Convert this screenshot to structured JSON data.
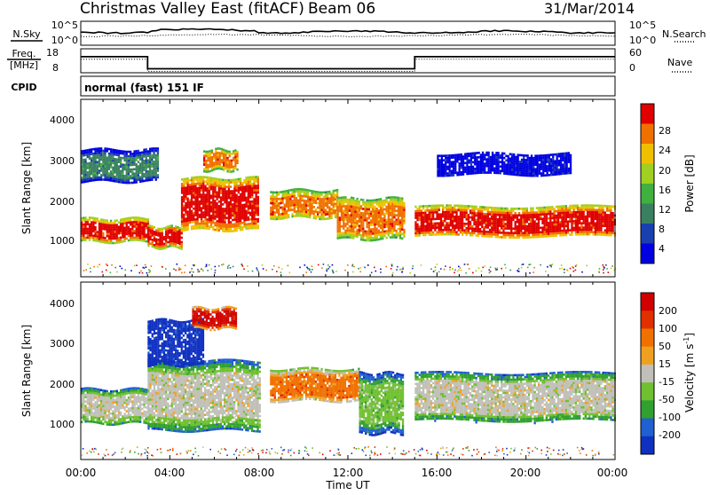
{
  "header": {
    "title": "Christmas Valley East (fitACF)",
    "beam": "Beam 06",
    "date": "31/Mar/2014"
  },
  "nsky_panel": {
    "left_label": "N.Sky",
    "right_label": "N.Search",
    "left_ticks": [
      "10^5",
      "10^0"
    ],
    "right_ticks": [
      "10^5",
      "10^0"
    ]
  },
  "freq_panel": {
    "left_label_line1": "Freq.",
    "left_label_line2": "[MHz]",
    "right_label": "Nave",
    "left_ticks": [
      "18",
      "8"
    ],
    "right_ticks": [
      "60",
      "0"
    ],
    "freq_steps": [
      [
        0,
        17.5
      ],
      [
        3.0,
        17.5
      ],
      [
        3.0,
        9.5
      ],
      [
        15.0,
        9.5
      ],
      [
        15.0,
        17.5
      ],
      [
        24,
        17.5
      ]
    ]
  },
  "cpid": {
    "label": "CPID",
    "value": "normal (fast) 151 IF"
  },
  "power_panel": {
    "ylabel": "Slant Range [km]",
    "yticks": [
      "4000",
      "3000",
      "2000",
      "1000"
    ],
    "colorbar_label": "Power [dB]",
    "colorbar_ticks": [
      "28",
      "24",
      "20",
      "16",
      "12",
      "8",
      "4"
    ],
    "colors": [
      "#0000e0",
      "#1a40b0",
      "#3a8060",
      "#40b040",
      "#a0d020",
      "#f0c000",
      "#f07000",
      "#e00000"
    ]
  },
  "velocity_panel": {
    "ylabel": "Slant Range [km]",
    "yticks": [
      "4000",
      "3000",
      "2000",
      "1000"
    ],
    "colorbar_label": "Velocity [m s",
    "colorbar_sup": "-1",
    "colorbar_label_end": "]",
    "colorbar_ticks": [
      "200",
      "100",
      "50",
      "15",
      "-15",
      "-50",
      "-100",
      "-200"
    ],
    "colors": [
      "#1030c0",
      "#2060d0",
      "#30a030",
      "#70c030",
      "#c0c0b8",
      "#f0a020",
      "#f07000",
      "#e03000",
      "#d00000"
    ]
  },
  "xaxis": {
    "ticks": [
      "00:00",
      "04:00",
      "08:00",
      "12:00",
      "16:00",
      "20:00",
      "00:00"
    ],
    "label": "Time UT"
  },
  "chart_data": [
    {
      "type": "heatmap",
      "name": "power",
      "x_range_hours": [
        0,
        24
      ],
      "y_range_km": [
        180,
        4500
      ],
      "features": [
        {
          "t0": 0.0,
          "t1": 3.0,
          "r0": 1050,
          "r1": 1600,
          "level": 7
        },
        {
          "t0": 3.0,
          "t1": 4.5,
          "r0": 900,
          "r1": 1400,
          "level": 7
        },
        {
          "t0": 4.5,
          "t1": 8.0,
          "r0": 1300,
          "r1": 2600,
          "level": 7
        },
        {
          "t0": 5.5,
          "t1": 7.0,
          "r0": 2800,
          "r1": 3300,
          "level": 6
        },
        {
          "t0": 8.5,
          "t1": 11.5,
          "r0": 1600,
          "r1": 2300,
          "level": 6
        },
        {
          "t0": 11.5,
          "t1": 14.5,
          "r0": 1100,
          "r1": 2100,
          "level": 6
        },
        {
          "t0": 15.0,
          "t1": 24.0,
          "r0": 1150,
          "r1": 1900,
          "level": 7
        },
        {
          "t0": 0.0,
          "t1": 3.5,
          "r0": 2500,
          "r1": 3300,
          "level": 2
        },
        {
          "t0": 16.0,
          "t1": 22.0,
          "r0": 2700,
          "r1": 3200,
          "level": 0
        }
      ]
    },
    {
      "type": "heatmap",
      "name": "velocity",
      "x_range_hours": [
        0,
        24
      ],
      "y_range_km": [
        180,
        4500
      ],
      "features": [
        {
          "t0": 0.0,
          "t1": 3.0,
          "r0": 1050,
          "r1": 1900,
          "level": 4
        },
        {
          "t0": 3.0,
          "t1": 8.0,
          "r0": 900,
          "r1": 2600,
          "level": 4
        },
        {
          "t0": 3.0,
          "t1": 5.5,
          "r0": 2500,
          "r1": 3600,
          "level": 0
        },
        {
          "t0": 5.0,
          "t1": 7.0,
          "r0": 3400,
          "r1": 3900,
          "level": 8
        },
        {
          "t0": 8.5,
          "t1": 12.5,
          "r0": 1600,
          "r1": 2400,
          "level": 6
        },
        {
          "t0": 12.5,
          "t1": 14.5,
          "r0": 800,
          "r1": 2300,
          "level": 3
        },
        {
          "t0": 15.0,
          "t1": 24.0,
          "r0": 1100,
          "r1": 2300,
          "level": 4
        }
      ]
    }
  ]
}
